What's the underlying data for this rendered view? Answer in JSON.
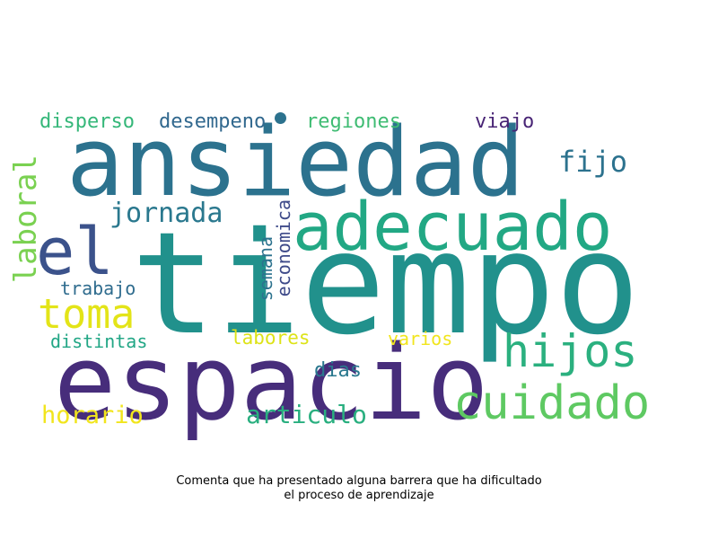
{
  "caption": {
    "line1": "Comenta que ha presentado alguna barrera que ha dificultado",
    "line2": "el proceso de aprendizaje"
  },
  "words": [
    {
      "text": "tiempo",
      "color": "#21918c"
    },
    {
      "text": "espacio",
      "color": "#472d7b"
    },
    {
      "text": "ansiedad",
      "color": "#2c728e"
    },
    {
      "text": "adecuado",
      "color": "#22a884"
    },
    {
      "text": "el",
      "color": "#3b528b"
    },
    {
      "text": "cuidado",
      "color": "#5ec962"
    },
    {
      "text": "hijos",
      "color": "#2bb07f"
    },
    {
      "text": "toma",
      "color": "#e3e418"
    },
    {
      "text": "jornada",
      "color": "#2a788e"
    },
    {
      "text": "fijo",
      "color": "#2c728e"
    },
    {
      "text": "labores",
      "color": "#dde318"
    },
    {
      "text": "horario",
      "color": "#f1e51d"
    },
    {
      "text": "articulo",
      "color": "#29af7f"
    },
    {
      "text": "disperso",
      "color": "#35b779"
    },
    {
      "text": "desempeno",
      "color": "#31688e"
    },
    {
      "text": "regiones",
      "color": "#3fbc73"
    },
    {
      "text": "viajo",
      "color": "#482475"
    },
    {
      "text": "laboral",
      "color": "#7ad151"
    },
    {
      "text": "trabajo",
      "color": "#2f6c8e"
    },
    {
      "text": "distintas",
      "color": "#21a685"
    },
    {
      "text": "varios",
      "color": "#f1e51d"
    },
    {
      "text": "dias",
      "color": "#2a788e"
    },
    {
      "text": "semana",
      "color": "#2c728e"
    },
    {
      "text": "economica",
      "color": "#3e4a89"
    },
    {
      "text": "dot",
      "color": "#2c728e"
    }
  ]
}
